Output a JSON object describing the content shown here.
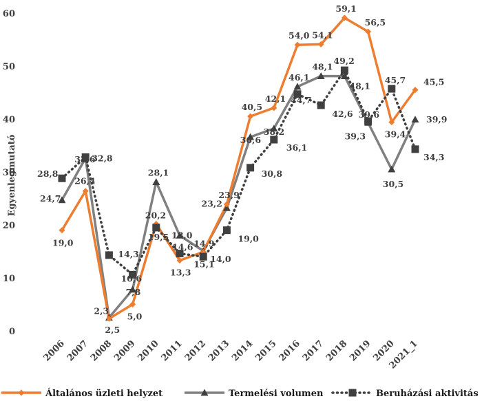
{
  "chart_data": {
    "type": "line",
    "title": "",
    "xlabel": "",
    "ylabel": "Egyenlegmutató",
    "ylim": [
      0,
      60
    ],
    "yticks": [
      "0",
      "10",
      "20",
      "30",
      "40",
      "50",
      "60"
    ],
    "grid": false,
    "legend_position": "bottom",
    "categories": [
      "2006",
      "2007",
      "2008",
      "2009",
      "2010",
      "2011",
      "2012",
      "2013",
      "2014",
      "2015",
      "2016",
      "2017",
      "2018",
      "2019",
      "2020",
      "2021_1"
    ],
    "series": [
      {
        "name": "Általános üzleti helyzet",
        "color": "#ed7d31",
        "style": "solid",
        "marker": "diamond",
        "values": [
          19.0,
          26.4,
          2.3,
          5.0,
          20.2,
          13.3,
          14.9,
          23.9,
          40.5,
          42.1,
          54.0,
          54.1,
          59.1,
          56.5,
          39.4,
          45.5
        ],
        "labels": [
          "19,0",
          "26,4",
          "2,3",
          "5,0",
          "20,2",
          "13,3",
          "14,9",
          "23,9",
          "40,5",
          "42,1",
          "54,0",
          "54,1",
          "59,1",
          "56,5",
          "39,4",
          "45,5"
        ]
      },
      {
        "name": "Termelési volumen",
        "color": "#808080",
        "style": "solid",
        "marker": "triangle",
        "values": [
          24.7,
          32.6,
          2.5,
          7.8,
          28.1,
          18.0,
          15.1,
          23.2,
          36.6,
          38.2,
          46.1,
          48.1,
          48.1,
          39.3,
          30.5,
          39.9
        ],
        "labels": [
          "24,7",
          "32,6",
          "2,5",
          "7,8",
          "28,1",
          "18,0",
          "15,1",
          "23,2",
          "36,6",
          "38,2",
          "46,1",
          "48,1",
          "48,1",
          "39,3",
          "30,5",
          "39,9"
        ]
      },
      {
        "name": "Beruházási aktivitás",
        "color": "#404040",
        "style": "dotted",
        "marker": "square",
        "values": [
          28.8,
          32.8,
          14.3,
          10.6,
          19.5,
          14.6,
          14.0,
          19.0,
          30.8,
          36.1,
          44.7,
          42.6,
          49.2,
          39.6,
          45.7,
          34.3
        ],
        "labels": [
          "28,8",
          "32,8",
          "14,3",
          "10,6",
          "19,5",
          "14,6",
          "14,0",
          "19,0",
          "30,8",
          "36,1",
          "44,7",
          "42,6",
          "49,2",
          "39,6",
          "45,7",
          "34,3"
        ]
      }
    ]
  }
}
